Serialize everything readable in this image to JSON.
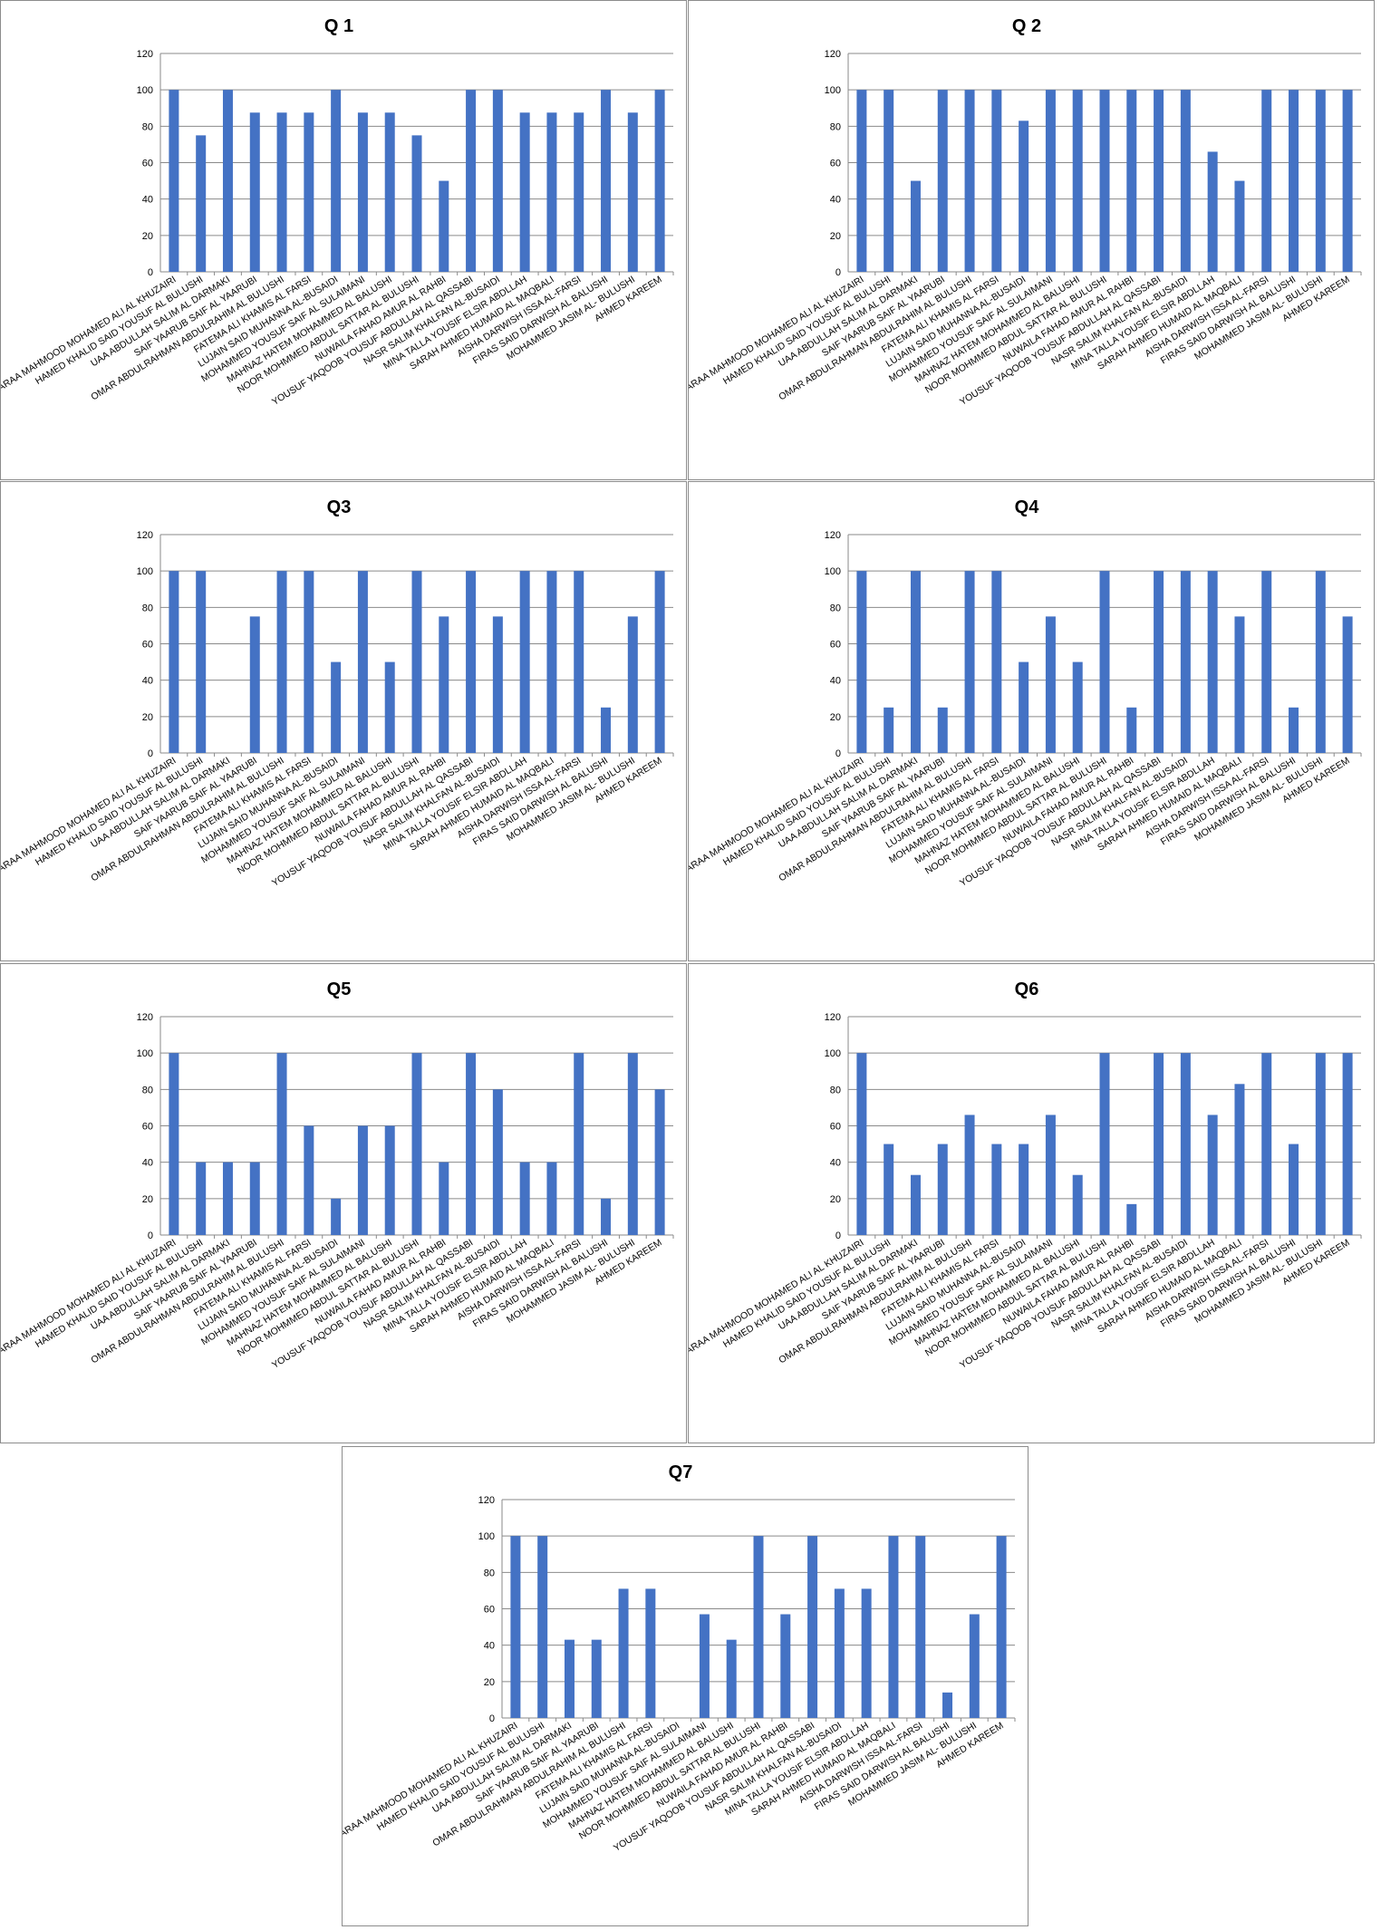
{
  "colors": {
    "bar": "#4472C4",
    "grid": "#8a8a8a",
    "border": "#8c8c8c"
  },
  "chart_data": [
    {
      "type": "bar",
      "title": "Q 1",
      "ylim": [
        0,
        120
      ],
      "yticks": [
        0,
        20,
        40,
        60,
        80,
        100,
        120
      ],
      "grid": true,
      "legend": "none",
      "categories": [
        "BARAA MAHMOOD MOHAMED ALI AL KHUZAIRI",
        "HAMED KHALID SAID YOUSUF AL BULUSHI",
        "UAA ABDULLAH SALIM AL DARMAKI",
        "SAIF YAARUB SAIF AL YAARUBI",
        "OMAR ABDULRAHMAN ABDULRAHIM AL BULUSHI",
        "FATEMA ALI KHAMIS AL FARSI",
        "LUJAIN SAID MUHANNA AL-BUSAIDI",
        "MOHAMMED YOUSUF SAIF AL SULAIMANI",
        "MAHNAZ HATEM MOHAMMED AL BALUSHI",
        "NOOR MOHMMED ABDUL SATTAR AL BULUSHI",
        "NUWAILA FAHAD AMUR AL RAHBI",
        "YOUSUF YAQOOB YOUSUF ABDULLAH AL QASSABI",
        "NASR SALIM KHALFAN AL-BUSAIDI",
        "MINA TALLA YOUSIF ELSIR ABDLLAH",
        "SARAH AHMED HUMAID AL MAQBALI",
        "AISHA DARWISH ISSA AL-FARSI",
        "FIRAS SAID DARWISH AL BALUSHI",
        "MOHAMMED JASIM AL- BULUSHI",
        "AHMED KAREEM"
      ],
      "values": [
        100,
        75,
        100,
        87.5,
        87.5,
        87.5,
        100,
        87.5,
        87.5,
        75,
        50,
        100,
        100,
        87.5,
        87.5,
        87.5,
        100,
        87.5,
        100
      ]
    },
    {
      "type": "bar",
      "title": "Q 2",
      "ylim": [
        0,
        120
      ],
      "yticks": [
        0,
        20,
        40,
        60,
        80,
        100,
        120
      ],
      "grid": true,
      "legend": "none",
      "categories": [
        "BARAA MAHMOOD MOHAMED ALI AL KHUZAIRI",
        "HAMED KHALID SAID YOUSUF AL BULUSHI",
        "UAA ABDULLAH SALIM AL DARMAKI",
        "SAIF YAARUB SAIF AL YAARUBI",
        "OMAR ABDULRAHMAN ABDULRAHIM AL BULUSHI",
        "FATEMA ALI KHAMIS AL FARSI",
        "LUJAIN SAID MUHANNA AL-BUSAIDI",
        "MOHAMMED YOUSUF SAIF AL SULAIMANI",
        "MAHNAZ HATEM MOHAMMED AL BALUSHI",
        "NOOR MOHMMED ABDUL SATTAR AL BULUSHI",
        "NUWAILA FAHAD AMUR AL RAHBI",
        "YOUSUF YAQOOB YOUSUF ABDULLAH AL QASSABI",
        "NASR SALIM KHALFAN AL-BUSAIDI",
        "MINA TALLA YOUSIF ELSIR ABDLLAH",
        "SARAH AHMED HUMAID AL MAQBALI",
        "AISHA DARWISH ISSA AL-FARSI",
        "FIRAS SAID DARWISH AL BALUSHI",
        "MOHAMMED JASIM AL- BULUSHI",
        "AHMED KAREEM"
      ],
      "values": [
        100,
        100,
        50,
        100,
        100,
        100,
        83,
        100,
        100,
        100,
        100,
        100,
        100,
        66,
        50,
        100,
        100,
        100,
        100
      ]
    },
    {
      "type": "bar",
      "title": "Q3",
      "ylim": [
        0,
        120
      ],
      "yticks": [
        0,
        20,
        40,
        60,
        80,
        100,
        120
      ],
      "grid": true,
      "legend": "none",
      "categories": [
        "BARAA MAHMOOD MOHAMED ALI AL KHUZAIRI",
        "HAMED KHALID SAID YOUSUF AL BULUSHI",
        "UAA ABDULLAH SALIM AL DARMAKI",
        "SAIF YAARUB SAIF AL YAARUBI",
        "OMAR ABDULRAHMAN ABDULRAHIM AL BULUSHI",
        "FATEMA ALI KHAMIS AL FARSI",
        "LUJAIN SAID MUHANNA AL-BUSAIDI",
        "MOHAMMED YOUSUF SAIF AL SULAIMANI",
        "MAHNAZ HATEM MOHAMMED AL BALUSHI",
        "NOOR MOHMMED ABDUL SATTAR AL BULUSHI",
        "NUWAILA FAHAD AMUR AL RAHBI",
        "YOUSUF YAQOOB YOUSUF ABDULLAH AL QASSABI",
        "NASR SALIM KHALFAN AL-BUSAIDI",
        "MINA TALLA YOUSIF ELSIR ABDLLAH",
        "SARAH AHMED HUMAID AL MAQBALI",
        "AISHA DARWISH ISSA AL-FARSI",
        "FIRAS SAID DARWISH AL BALUSHI",
        "MOHAMMED JASIM AL- BULUSHI",
        "AHMED KAREEM"
      ],
      "values": [
        100,
        100,
        0,
        75,
        100,
        100,
        50,
        100,
        50,
        100,
        75,
        100,
        75,
        100,
        100,
        100,
        25,
        75,
        100
      ]
    },
    {
      "type": "bar",
      "title": "Q4",
      "ylim": [
        0,
        120
      ],
      "yticks": [
        0,
        20,
        40,
        60,
        80,
        100,
        120
      ],
      "grid": true,
      "legend": "none",
      "categories": [
        "BARAA MAHMOOD MOHAMED ALI AL KHUZAIRI",
        "HAMED KHALID SAID YOUSUF AL BULUSHI",
        "UAA ABDULLAH SALIM AL DARMAKI",
        "SAIF YAARUB SAIF AL YAARUBI",
        "OMAR ABDULRAHMAN ABDULRAHIM AL BULUSHI",
        "FATEMA ALI KHAMIS AL FARSI",
        "LUJAIN SAID MUHANNA AL-BUSAIDI",
        "MOHAMMED YOUSUF SAIF AL SULAIMANI",
        "MAHNAZ HATEM MOHAMMED AL BALUSHI",
        "NOOR MOHMMED ABDUL SATTAR AL BULUSHI",
        "NUWAILA FAHAD AMUR AL RAHBI",
        "YOUSUF YAQOOB YOUSUF ABDULLAH AL QASSABI",
        "NASR SALIM KHALFAN AL-BUSAIDI",
        "MINA TALLA YOUSIF ELSIR ABDLLAH",
        "SARAH AHMED HUMAID AL MAQBALI",
        "AISHA DARWISH ISSA AL-FARSI",
        "FIRAS SAID DARWISH AL BALUSHI",
        "MOHAMMED JASIM AL- BULUSHI",
        "AHMED KAREEM"
      ],
      "values": [
        100,
        25,
        100,
        25,
        100,
        100,
        50,
        75,
        50,
        100,
        25,
        100,
        100,
        100,
        75,
        100,
        25,
        100,
        75
      ]
    },
    {
      "type": "bar",
      "title": "Q5",
      "ylim": [
        0,
        120
      ],
      "yticks": [
        0,
        20,
        40,
        60,
        80,
        100,
        120
      ],
      "grid": true,
      "legend": "none",
      "categories": [
        "BARAA MAHMOOD MOHAMED ALI AL KHUZAIRI",
        "HAMED KHALID SAID YOUSUF AL BULUSHI",
        "UAA ABDULLAH SALIM AL DARMAKI",
        "SAIF YAARUB SAIF AL YAARUBI",
        "OMAR ABDULRAHMAN ABDULRAHIM AL BULUSHI",
        "FATEMA ALI KHAMIS AL FARSI",
        "LUJAIN SAID MUHANNA AL-BUSAIDI",
        "MOHAMMED YOUSUF SAIF AL SULAIMANI",
        "MAHNAZ HATEM MOHAMMED AL BALUSHI",
        "NOOR MOHMMED ABDUL SATTAR AL BULUSHI",
        "NUWAILA FAHAD AMUR AL RAHBI",
        "YOUSUF YAQOOB YOUSUF ABDULLAH AL QASSABI",
        "NASR SALIM KHALFAN AL-BUSAIDI",
        "MINA TALLA YOUSIF ELSIR ABDLLAH",
        "SARAH AHMED HUMAID AL MAQBALI",
        "AISHA DARWISH ISSA AL-FARSI",
        "FIRAS SAID DARWISH AL BALUSHI",
        "MOHAMMED JASIM AL- BULUSHI",
        "AHMED KAREEM"
      ],
      "values": [
        100,
        40,
        40,
        40,
        100,
        60,
        20,
        60,
        60,
        100,
        40,
        100,
        80,
        40,
        40,
        100,
        20,
        100,
        80
      ]
    },
    {
      "type": "bar",
      "title": "Q6",
      "ylim": [
        0,
        120
      ],
      "yticks": [
        0,
        20,
        40,
        60,
        80,
        100,
        120
      ],
      "grid": true,
      "legend": "none",
      "categories": [
        "BARAA MAHMOOD MOHAMED ALI AL KHUZAIRI",
        "HAMED KHALID SAID YOUSUF AL BULUSHI",
        "UAA ABDULLAH SALIM AL DARMAKI",
        "SAIF YAARUB SAIF AL YAARUBI",
        "OMAR ABDULRAHMAN ABDULRAHIM AL BULUSHI",
        "FATEMA ALI KHAMIS AL FARSI",
        "LUJAIN SAID MUHANNA AL-BUSAIDI",
        "MOHAMMED YOUSUF SAIF AL SULAIMANI",
        "MAHNAZ HATEM MOHAMMED AL BALUSHI",
        "NOOR MOHMMED ABDUL SATTAR AL BULUSHI",
        "NUWAILA FAHAD AMUR AL RAHBI",
        "YOUSUF YAQOOB YOUSUF ABDULLAH AL QASSABI",
        "NASR SALIM KHALFAN AL-BUSAIDI",
        "MINA TALLA YOUSIF ELSIR ABDLLAH",
        "SARAH AHMED HUMAID AL MAQBALI",
        "AISHA DARWISH ISSA AL-FARSI",
        "FIRAS SAID DARWISH AL BALUSHI",
        "MOHAMMED JASIM AL- BULUSHI",
        "AHMED KAREEM"
      ],
      "values": [
        100,
        50,
        33,
        50,
        66,
        50,
        50,
        66,
        33,
        100,
        17,
        100,
        100,
        66,
        83,
        100,
        50,
        100,
        100
      ]
    },
    {
      "type": "bar",
      "title": "Q7",
      "ylim": [
        0,
        120
      ],
      "yticks": [
        0,
        20,
        40,
        60,
        80,
        100,
        120
      ],
      "grid": true,
      "legend": "none",
      "categories": [
        "BARAA MAHMOOD MOHAMED ALI AL KHUZAIRI",
        "HAMED KHALID SAID YOUSUF AL BULUSHI",
        "UAA ABDULLAH SALIM AL DARMAKI",
        "SAIF YAARUB SAIF AL YAARUBI",
        "OMAR ABDULRAHMAN ABDULRAHIM AL BULUSHI",
        "FATEMA ALI KHAMIS AL FARSI",
        "LUJAIN SAID MUHANNA AL-BUSAIDI",
        "MOHAMMED YOUSUF SAIF AL SULAIMANI",
        "MAHNAZ HATEM MOHAMMED AL BALUSHI",
        "NOOR MOHMMED ABDUL SATTAR AL BULUSHI",
        "NUWAILA FAHAD AMUR AL RAHBI",
        "YOUSUF YAQOOB YOUSUF ABDULLAH AL QASSABI",
        "NASR SALIM KHALFAN AL-BUSAIDI",
        "MINA TALLA YOUSIF ELSIR ABDLLAH",
        "SARAH AHMED HUMAID AL MAQBALI",
        "AISHA DARWISH ISSA AL-FARSI",
        "FIRAS SAID DARWISH AL BALUSHI",
        "MOHAMMED JASIM AL- BULUSHI",
        "AHMED KAREEM"
      ],
      "values": [
        100,
        100,
        43,
        43,
        71,
        71,
        0,
        57,
        43,
        100,
        57,
        100,
        71,
        71,
        100,
        100,
        14,
        57,
        100
      ]
    }
  ]
}
